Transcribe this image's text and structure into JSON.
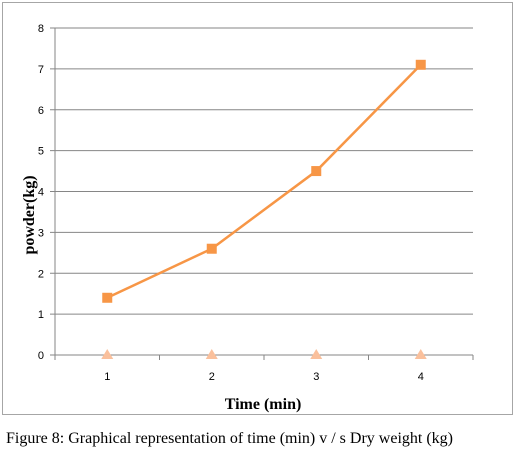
{
  "chart_data": {
    "type": "line",
    "x": [
      1,
      2,
      3,
      4
    ],
    "categories": [
      "1",
      "2",
      "3",
      "4"
    ],
    "series": [
      {
        "values": [
          1.4,
          2.6,
          4.5,
          7.1
        ],
        "color": "#f79646",
        "marker": "square"
      },
      {
        "values": [
          0,
          0,
          0,
          0
        ],
        "color": "#fac09c",
        "marker": "triangle"
      }
    ],
    "xlabel": "Time (min)",
    "ylabel": "powder(kg)",
    "ylim": [
      0,
      8
    ],
    "yticks": [
      "0",
      "1",
      "2",
      "3",
      "4",
      "5",
      "6",
      "7",
      "8"
    ],
    "grid": true,
    "legend": "none"
  },
  "caption": "Figure 8: Graphical representation of time (min) v / s Dry weight (kg)",
  "colors": {
    "gridline": "#868686",
    "axis": "#868686"
  }
}
